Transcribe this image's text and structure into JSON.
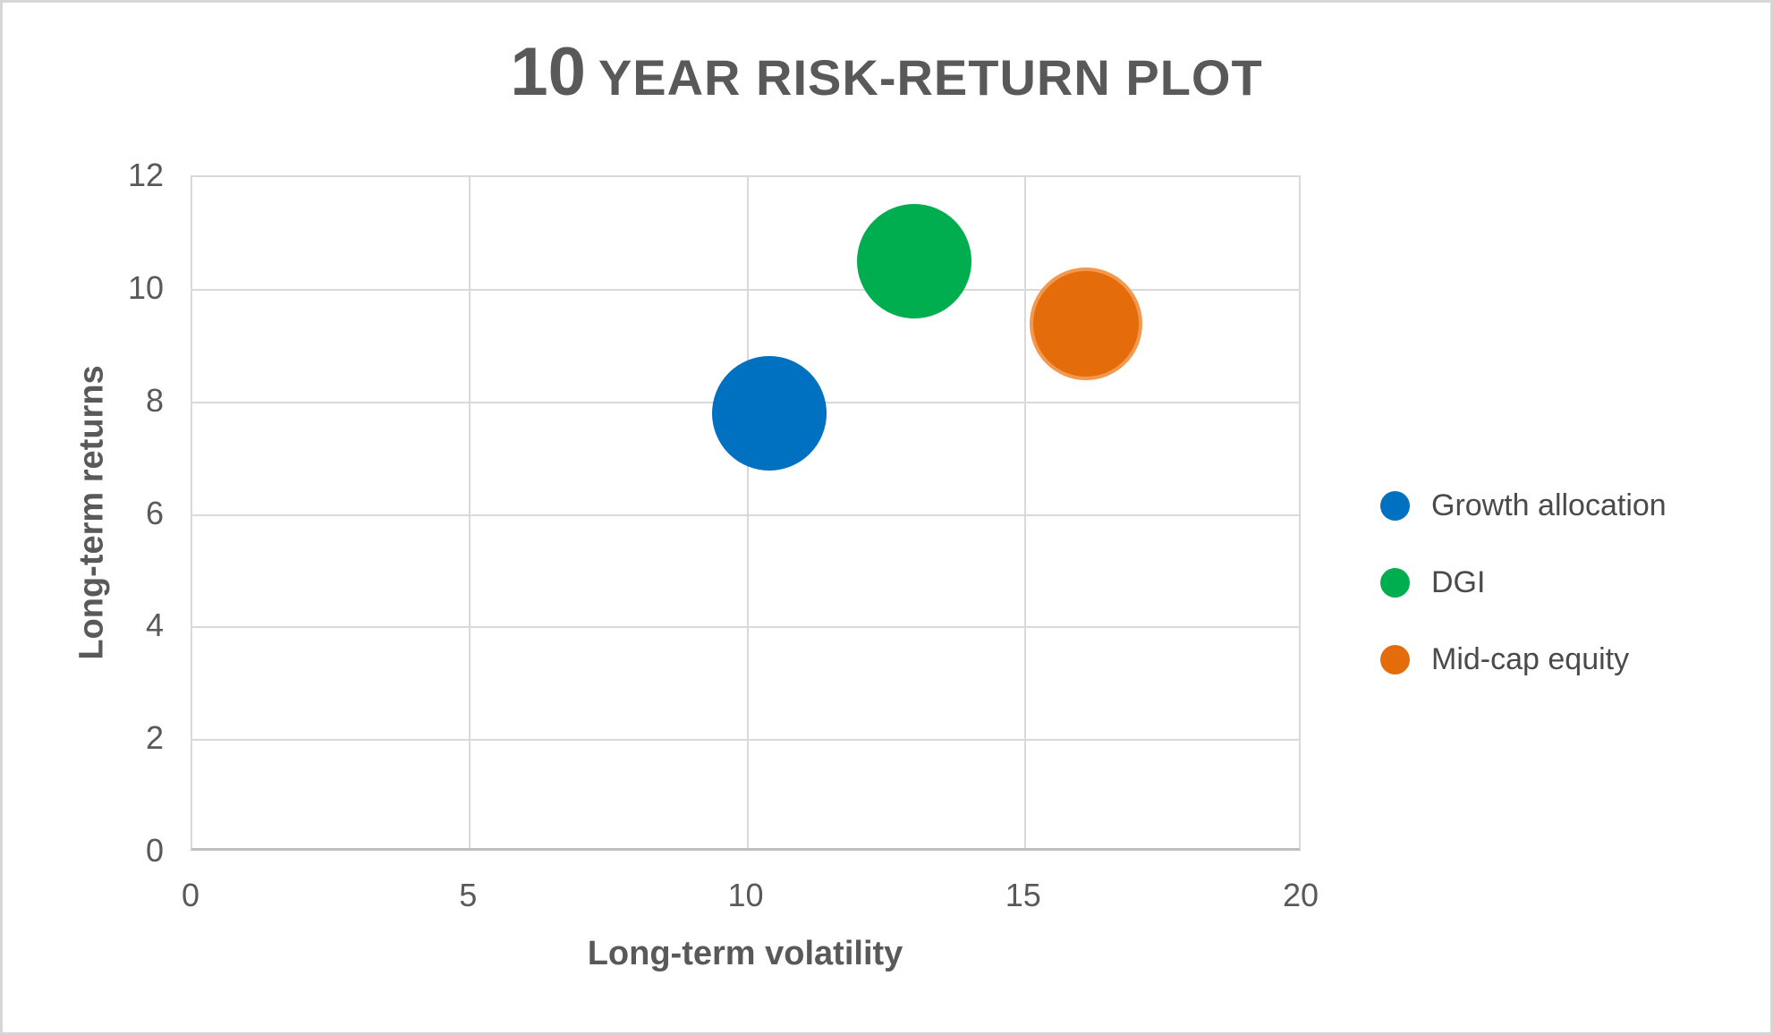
{
  "window": {
    "background_color": "#ffffff",
    "border_color": "#d6d6d6"
  },
  "chart_data": {
    "type": "scatter",
    "subtype": "bubble",
    "title": "10 YEAR RISK-RETURN PLOT",
    "title_parts": {
      "number": "10",
      "rest": "YEAR RISK-RETURN PLOT"
    },
    "xlabel": "Long-term volatility",
    "ylabel": "Long-term returns",
    "xlim": [
      0,
      20
    ],
    "ylim": [
      0,
      12
    ],
    "xticks": [
      0,
      5,
      10,
      15,
      20
    ],
    "yticks": [
      0,
      2,
      4,
      6,
      8,
      10,
      12
    ],
    "grid": true,
    "legend_position": "right",
    "series": [
      {
        "name": "Growth allocation",
        "color": "#0070C0",
        "stroke": "#0070C0",
        "points": [
          {
            "x": 10.4,
            "y": 7.8,
            "radius_px": 64
          }
        ]
      },
      {
        "name": "DGI",
        "color": "#00AE50",
        "stroke": "#00AE50",
        "points": [
          {
            "x": 13.0,
            "y": 10.5,
            "radius_px": 64
          }
        ]
      },
      {
        "name": "Mid-cap equity",
        "color": "#E46C0A",
        "stroke": "#F2994F",
        "points": [
          {
            "x": 16.1,
            "y": 9.4,
            "radius_px": 63
          }
        ]
      }
    ],
    "styles": {
      "gridline_color": "#d9d9d9",
      "axis_line_color": "#bfbfbf",
      "text_color": "#595959"
    }
  }
}
